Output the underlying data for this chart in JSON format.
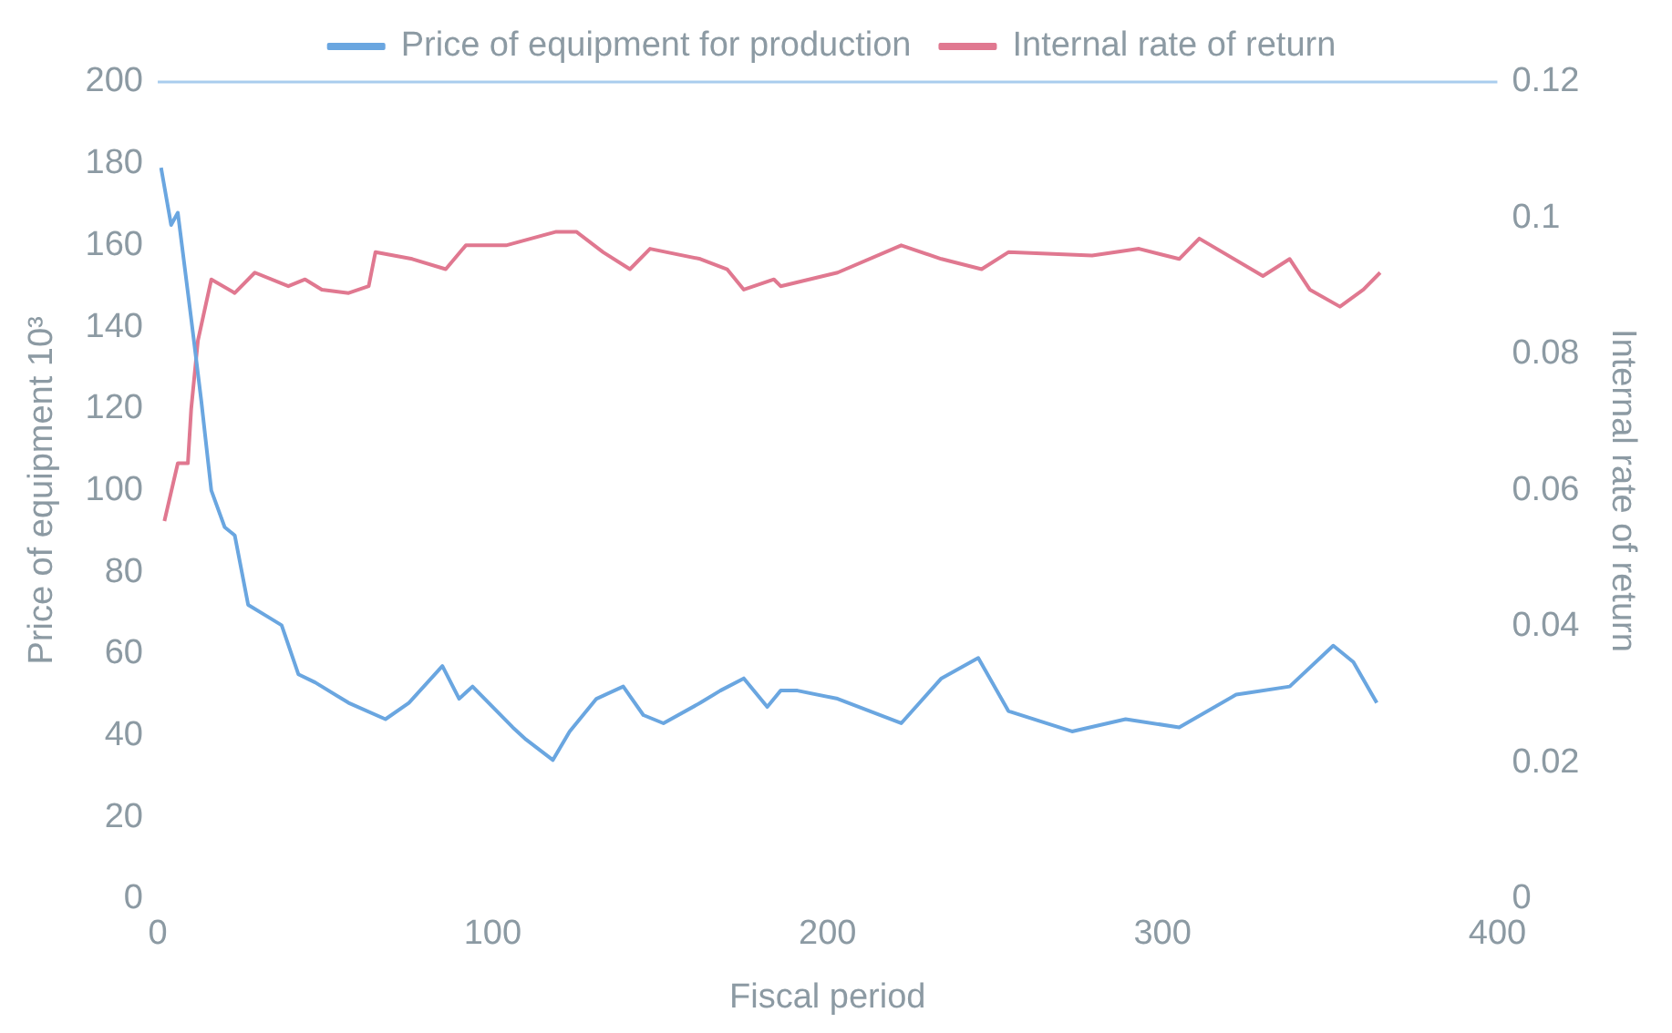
{
  "chart_data": {
    "type": "line",
    "xlabel": "Fiscal period",
    "ylabel": "Price of equipment 10³",
    "y2label": "Internal rate of return",
    "xlim": [
      0,
      400
    ],
    "xticks": [
      0,
      100,
      200,
      300,
      400
    ],
    "ylim": [
      0,
      200
    ],
    "yticks": [
      0,
      20,
      40,
      60,
      80,
      100,
      120,
      140,
      160,
      180,
      200
    ],
    "y2lim": [
      0,
      0.12
    ],
    "y2ticks": [
      0,
      0.02,
      0.04,
      0.06,
      0.08,
      0.1,
      0.12
    ],
    "grid": false,
    "legend": "top",
    "marker": "none",
    "line_style": "solid",
    "ref_lines": [
      {
        "axis": "y",
        "value": 200,
        "color": "#a9cdee"
      }
    ],
    "series": [
      {
        "name": "Price of equipment for production",
        "color": "#6aa6e0",
        "x": [
          1,
          4,
          6,
          10,
          13,
          16,
          20,
          23,
          27,
          33,
          37,
          42,
          47,
          57,
          68,
          75,
          85,
          90,
          94,
          106,
          110,
          118,
          123,
          131,
          139,
          145,
          151,
          162,
          168,
          175,
          182,
          186,
          191,
          203,
          222,
          234,
          245,
          254,
          273,
          289,
          305,
          322,
          338,
          351,
          357,
          364
        ],
        "values": [
          179,
          165,
          168,
          142,
          122,
          100,
          91,
          89,
          72,
          69,
          67,
          55,
          53,
          48,
          44,
          48,
          57,
          49,
          52,
          42,
          39,
          34,
          41,
          49,
          52,
          45,
          43,
          48,
          51,
          54,
          47,
          51,
          51,
          49,
          43,
          54,
          59,
          46,
          41,
          44,
          42,
          50,
          52,
          62,
          58,
          48
        ]
      },
      {
        "name": "Internal rate of return",
        "color": "#e07890",
        "axis": "y2",
        "x": [
          2,
          6,
          9,
          10,
          12,
          16,
          23,
          29,
          39,
          44,
          49,
          57,
          63,
          65,
          76,
          86,
          92,
          104,
          119,
          125,
          133,
          141,
          147,
          162,
          170,
          175,
          184,
          186,
          203,
          222,
          234,
          246,
          254,
          279,
          293,
          305,
          311,
          330,
          338,
          344,
          353,
          360,
          365
        ],
        "values": [
          0.0555,
          0.064,
          0.064,
          0.072,
          0.082,
          0.091,
          0.089,
          0.092,
          0.09,
          0.091,
          0.0895,
          0.089,
          0.09,
          0.095,
          0.094,
          0.0925,
          0.096,
          0.096,
          0.098,
          0.098,
          0.095,
          0.0925,
          0.0955,
          0.094,
          0.0925,
          0.0895,
          0.091,
          0.09,
          0.092,
          0.096,
          0.094,
          0.0925,
          0.095,
          0.0945,
          0.0955,
          0.094,
          0.097,
          0.0915,
          0.094,
          0.0895,
          0.087,
          0.0895,
          0.092
        ]
      }
    ]
  }
}
